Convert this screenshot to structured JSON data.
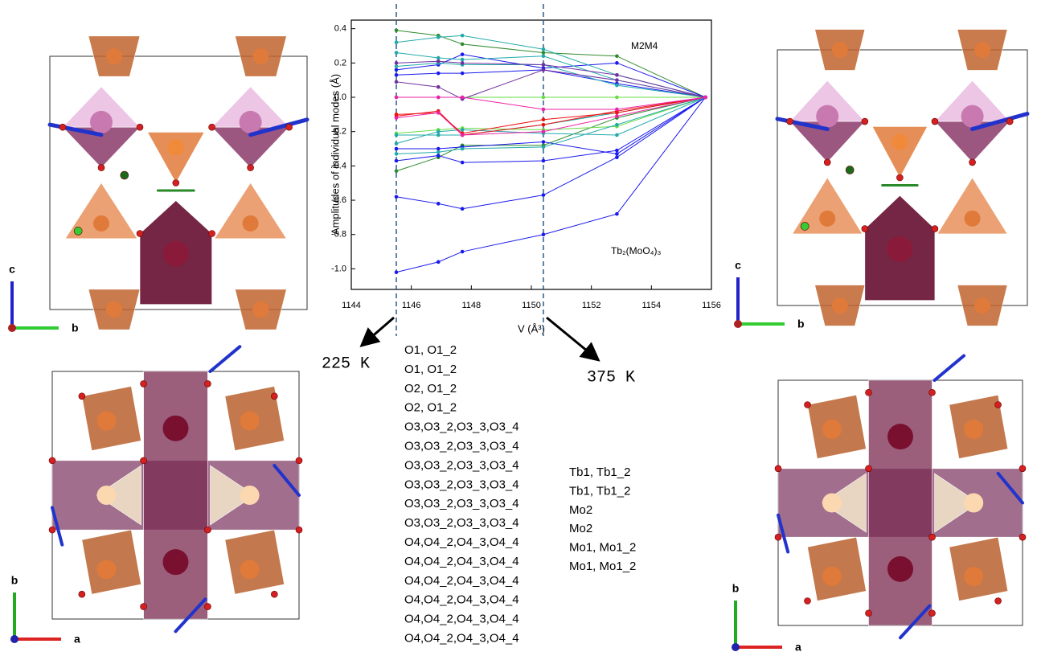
{
  "chart_data": {
    "type": "line",
    "y_label": "Amplitudes of individual modes (Å)",
    "x_label": "V (Å³)",
    "annotations": [
      "M2M4",
      "Tb₂(MoO₄)₃",
      "225 K",
      "375 K"
    ],
    "vlines": [
      1145.5,
      1150.4
    ],
    "x": [
      1145.5,
      1146.9,
      1147.7,
      1150.4,
      1152.85,
      1155.8
    ],
    "xlim": [
      1144,
      1156
    ],
    "xticks": [
      1144,
      1146,
      1148,
      1150,
      1152,
      1154,
      1156
    ],
    "ylim": [
      -1.12,
      0.45
    ],
    "yticks": [
      {
        "value": -1,
        "label": "-1.0"
      },
      -0.8,
      -0.6,
      -0.4,
      -0.2,
      {
        "value": 0,
        "label": "0.0"
      },
      0.2,
      0.4
    ],
    "series": [
      {
        "name": "O1, O1_2",
        "color": "#2e8b2e",
        "values": [
          0.39,
          0.36,
          0.31,
          0.26,
          0.24,
          0
        ]
      },
      {
        "name": "O1, O1_2",
        "color": "#2e8b2e",
        "values": [
          -0.43,
          -0.35,
          -0.28,
          -0.28,
          -0.12,
          0
        ]
      },
      {
        "name": "O2, O1_2",
        "color": "#66dd44",
        "values": [
          0,
          0,
          0,
          0,
          0,
          0
        ]
      },
      {
        "name": "O2, O1_2",
        "color": "#66dd44",
        "values": [
          -0.21,
          -0.19,
          -0.18,
          -0.19,
          -0.17,
          0
        ]
      },
      {
        "name": "O3,O3_2,O3_3,O3_4",
        "color": "#1a1aee",
        "values": [
          -1.02,
          -0.96,
          -0.9,
          -0.8,
          -0.68,
          0
        ]
      },
      {
        "name": "O3,O3_2,O3_3,O3_4",
        "color": "#1a1aee",
        "values": [
          -0.58,
          -0.62,
          -0.65,
          -0.57,
          -0.35,
          0
        ]
      },
      {
        "name": "O3,O3_2,O3_3,O3_4",
        "color": "#1a1aee",
        "values": [
          -0.37,
          -0.34,
          -0.38,
          -0.37,
          -0.31,
          0
        ]
      },
      {
        "name": "O3,O3_2,O3_3,O3_4",
        "color": "#1a1aee",
        "values": [
          0.16,
          0.19,
          0.25,
          0.17,
          0.2,
          0
        ]
      },
      {
        "name": "O3,O3_2,O3_3,O3_4",
        "color": "#1a1aee",
        "values": [
          0.13,
          0.14,
          0.14,
          0.16,
          0.08,
          0
        ]
      },
      {
        "name": "O3,O3_2,O3_3,O3_4",
        "color": "#1a1aee",
        "values": [
          -0.3,
          -0.3,
          -0.29,
          -0.26,
          -0.33,
          0
        ]
      },
      {
        "name": "O4,O4_2,O4_3,O4_4",
        "color": "#22aaaa",
        "values": [
          0.32,
          0.35,
          0.36,
          0.28,
          0.13,
          0
        ]
      },
      {
        "name": "O4,O4_2,O4_3,O4_4",
        "color": "#22aaaa",
        "values": [
          0.26,
          0.23,
          0.22,
          0.24,
          0.1,
          0
        ]
      },
      {
        "name": "O4,O4_2,O4_3,O4_4",
        "color": "#22aaaa",
        "values": [
          -0.27,
          -0.2,
          -0.19,
          -0.21,
          -0.22,
          0
        ]
      },
      {
        "name": "O4,O4_2,O4_3,O4_4",
        "color": "#22aaaa",
        "values": [
          -0.33,
          -0.32,
          -0.3,
          -0.29,
          -0.16,
          0
        ]
      },
      {
        "name": "O4,O4_2,O4_3,O4_4",
        "color": "#22aaaa",
        "values": [
          0.18,
          0.2,
          0.19,
          0.19,
          0.07,
          0
        ]
      },
      {
        "name": "O4,O4_2,O4_3,O4_4",
        "color": "#22aaaa",
        "values": [
          -0.22,
          -0.22,
          -0.22,
          -0.16,
          -0.09,
          0
        ]
      },
      {
        "name": "Tb1, Tb1_2",
        "color": "#ee1111",
        "values": [
          -0.11,
          -0.08,
          -0.22,
          -0.16,
          -0.08,
          0
        ]
      },
      {
        "name": "Tb1, Tb1_2",
        "color": "#ee1111",
        "values": [
          -0.1,
          -0.09,
          -0.21,
          -0.13,
          -0.09,
          0
        ]
      },
      {
        "name": "Mo2",
        "color": "#7030a0",
        "values": [
          0.2,
          0.21,
          0.2,
          0.19,
          0.13,
          0
        ]
      },
      {
        "name": "Mo2",
        "color": "#7030a0",
        "values": [
          0.09,
          0.06,
          -0.01,
          0.16,
          0.1,
          0
        ]
      },
      {
        "name": "Mo1, Mo1_2",
        "color": "#ee22aa",
        "values": [
          0,
          0,
          0,
          -0.07,
          -0.07,
          0
        ]
      },
      {
        "name": "Mo1, Mo1_2",
        "color": "#ee22aa",
        "values": [
          -0.12,
          -0.09,
          -0.22,
          -0.2,
          -0.11,
          0
        ]
      }
    ]
  },
  "structure_panels": [
    {
      "axes": [
        "c",
        "b"
      ]
    },
    {
      "axes": [
        "b",
        "a"
      ]
    },
    {
      "axes": [
        "c",
        "b"
      ]
    },
    {
      "axes": [
        "b",
        "a"
      ]
    }
  ]
}
